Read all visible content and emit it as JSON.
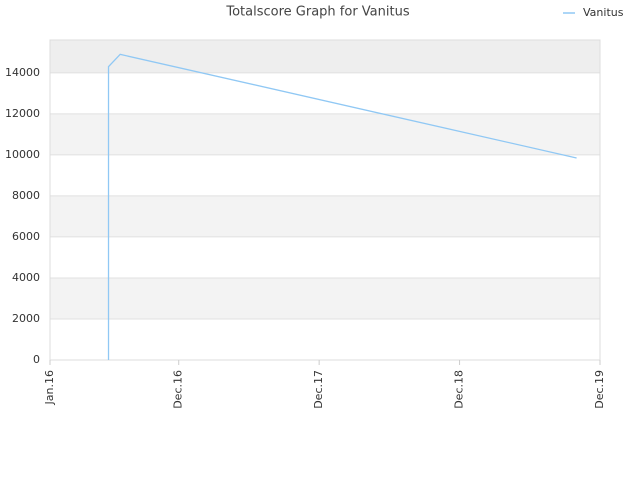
{
  "chart_data": {
    "type": "line",
    "title": "Totalscore Graph for Vanitus",
    "x": [
      "2016-06",
      "2016-06",
      "2016-07",
      "2019-10"
    ],
    "series": [
      {
        "name": "Vanitus",
        "color": "#90c8f4",
        "values": [
          0,
          14300,
          14900,
          9850
        ]
      }
    ],
    "xlim": [
      "2016-01",
      "2019-12"
    ],
    "xticks": [
      {
        "value": "2016-01",
        "label": "Jan.16"
      },
      {
        "value": "2016-12",
        "label": "Dec.16"
      },
      {
        "value": "2017-12",
        "label": "Dec.17"
      },
      {
        "value": "2018-12",
        "label": "Dec.18"
      },
      {
        "value": "2019-12",
        "label": "Dec.19"
      }
    ],
    "ylim": [
      0,
      15600
    ],
    "yticks": [
      0,
      2000,
      4000,
      6000,
      8000,
      10000,
      12000,
      14000
    ],
    "grid": true,
    "legend": "top-right"
  }
}
